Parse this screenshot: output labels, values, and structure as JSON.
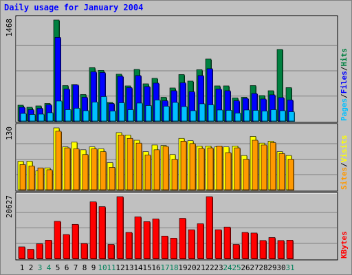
{
  "chart_data": [
    {
      "type": "bar",
      "title": "Daily usage for January 2004",
      "categories": [
        "1",
        "2",
        "3",
        "4",
        "5",
        "6",
        "7",
        "8",
        "9",
        "10",
        "11",
        "12",
        "13",
        "14",
        "15",
        "16",
        "17",
        "18",
        "19",
        "20",
        "21",
        "22",
        "23",
        "24",
        "25",
        "26",
        "27",
        "28",
        "29",
        "30",
        "31"
      ],
      "weekend_days": [
        "3",
        "4",
        "10",
        "11",
        "17",
        "18",
        "24",
        "25",
        "31"
      ],
      "ylim": [
        0,
        1468
      ],
      "y_max_label": "1468",
      "axis_label_parts": [
        "Pages",
        "/",
        "Files",
        "/",
        "Hits"
      ],
      "series": [
        {
          "name": "Hits",
          "color": "#008040",
          "values": [
            230,
            200,
            220,
            255,
            1468,
            515,
            530,
            385,
            775,
            735,
            270,
            680,
            510,
            750,
            540,
            620,
            345,
            480,
            675,
            580,
            745,
            900,
            510,
            510,
            335,
            345,
            515,
            370,
            440,
            1040,
            485
          ]
        },
        {
          "name": "Files",
          "color": "#0000ff",
          "values": [
            200,
            165,
            185,
            235,
            1215,
            465,
            525,
            345,
            715,
            705,
            255,
            650,
            485,
            660,
            500,
            550,
            295,
            440,
            555,
            425,
            660,
            760,
            465,
            440,
            295,
            330,
            400,
            320,
            380,
            340,
            305
          ]
        },
        {
          "name": "Pages",
          "color": "#00c0ff",
          "values": [
            110,
            95,
            100,
            120,
            290,
            165,
            185,
            150,
            275,
            355,
            145,
            265,
            165,
            260,
            225,
            305,
            215,
            270,
            210,
            150,
            250,
            235,
            160,
            155,
            115,
            160,
            155,
            145,
            165,
            150,
            135
          ]
        }
      ]
    },
    {
      "type": "bar",
      "ylim": [
        0,
        130
      ],
      "y_max_label": "130",
      "axis_label_parts": [
        "Sites",
        "/",
        "Visits"
      ],
      "series": [
        {
          "name": "Visits",
          "color": "#ffff00",
          "values": [
            60,
            60,
            40,
            46,
            130,
            90,
            100,
            84,
            90,
            86,
            57,
            120,
            115,
            104,
            80,
            94,
            93,
            74,
            108,
            103,
            92,
            92,
            90,
            90,
            92,
            72,
            112,
            98,
            102,
            80,
            72
          ]
        },
        {
          "name": "Sites",
          "color": "#ff9900",
          "values": [
            53,
            50,
            46,
            42,
            123,
            88,
            86,
            74,
            86,
            80,
            47,
            115,
            108,
            98,
            73,
            84,
            91,
            64,
            102,
            97,
            87,
            88,
            92,
            78,
            88,
            64,
            104,
            94,
            99,
            76,
            64
          ]
        }
      ]
    },
    {
      "type": "bar",
      "ylim": [
        0,
        20627
      ],
      "y_max_label": "20627",
      "axis_label_parts": [
        "KBytes"
      ],
      "series": [
        {
          "name": "KBytes",
          "color": "#ff0000",
          "values": [
            3900,
            3100,
            4900,
            6100,
            12400,
            8000,
            11400,
            5000,
            18900,
            17300,
            4700,
            20627,
            8700,
            13900,
            12300,
            13200,
            7500,
            6800,
            13400,
            9600,
            11600,
            20627,
            9600,
            10500,
            4700,
            8700,
            8500,
            6000,
            7000,
            6000,
            6100
          ]
        }
      ]
    }
  ]
}
